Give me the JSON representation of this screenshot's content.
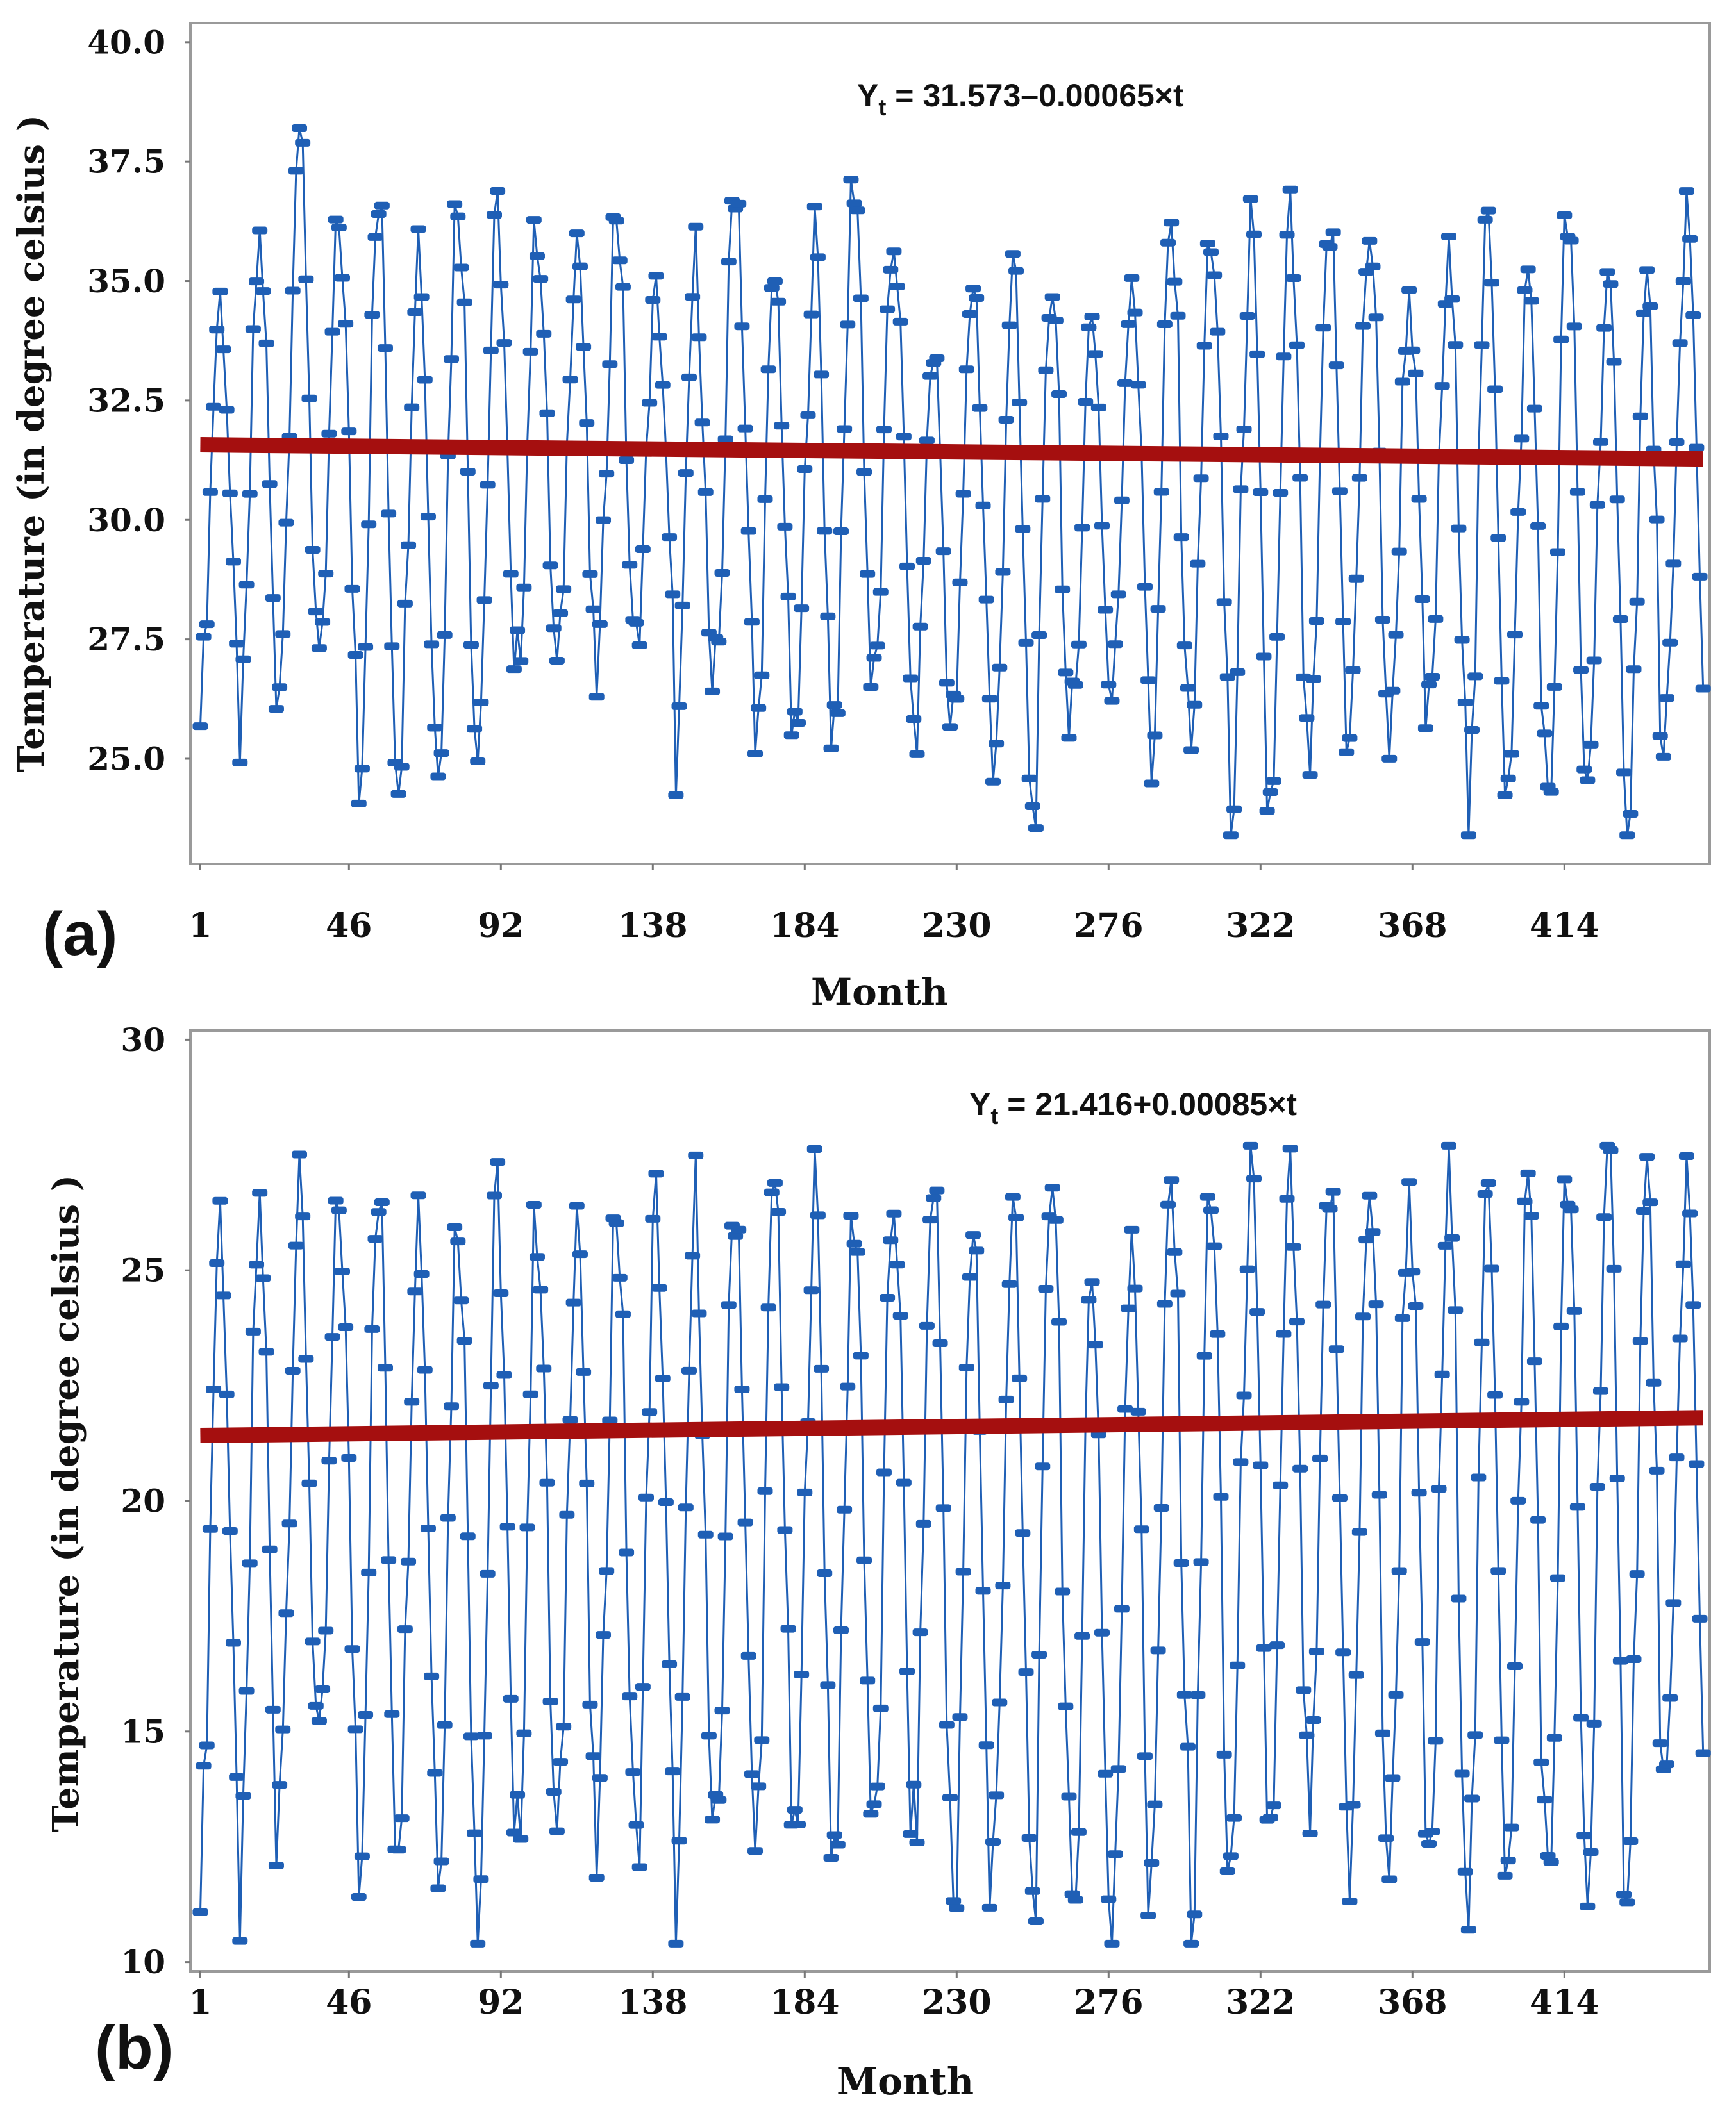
{
  "chart_data": [
    {
      "type": "line",
      "panel_label": "(a)",
      "equation": {
        "base": "Y",
        "sub": "t",
        "rest": " = 31.573–0.00065×t"
      },
      "xlabel": "Month",
      "ylabel": "Temperature (in degree celsius )",
      "xticks": [
        1,
        46,
        92,
        138,
        184,
        230,
        276,
        322,
        368,
        414
      ],
      "yticks": [
        25.0,
        27.5,
        30.0,
        32.5,
        35.0,
        37.5,
        40.0
      ],
      "ytick_labels": [
        "25.0",
        "27.5",
        "30.0",
        "32.5",
        "35.0",
        "37.5",
        "40.0"
      ],
      "xlim": [
        -2,
        458
      ],
      "ylim": [
        22.8,
        40.4
      ],
      "series": [
        {
          "name": "Temperature",
          "color": "#1f5fb5",
          "n": 456,
          "cycles": 38,
          "range": [
            23.4,
            38.2
          ],
          "peaks": [
            34.6,
            35.8,
            38.2,
            36.2,
            36.6,
            35.9,
            37.0,
            36.3,
            36.2,
            36.0,
            36.6,
            34.7,
            35.4,
            37.3,
            35.0,
            35.8,
            37.3,
            36.0,
            33.6,
            35.1,
            35.1,
            35.3,
            34.4,
            35.3,
            36.1,
            36.1,
            35.9,
            36.1,
            36.1,
            36.1,
            34.8,
            35.3,
            36.4,
            35.1,
            36.4,
            35.0,
            34.8,
            36.5
          ],
          "troughs": [
            26.4,
            25.5,
            27.2,
            26.5,
            24.8,
            24.9,
            25.3,
            25.7,
            27.0,
            26.7,
            26.7,
            27.5,
            25.0,
            26.7,
            25.1,
            25.1,
            26.0,
            26.5,
            25.1,
            25.8,
            24.2,
            23.7,
            26.0,
            26.3,
            25.0,
            25.8,
            23.4,
            24.1,
            25.0,
            25.9,
            25.2,
            25.9,
            24.1,
            24.3,
            23.6,
            24.8,
            23.6,
            25.8
          ]
        },
        {
          "name": "Linear trend",
          "color": "#a50f0f",
          "intercept": 31.573,
          "slope": -0.00065,
          "x_range": [
            1,
            456
          ]
        }
      ]
    },
    {
      "type": "line",
      "panel_label": "(b)",
      "equation": {
        "base": "Y",
        "sub": "t",
        "rest": " = 21.416+0.00085×t"
      },
      "xlabel": "Month",
      "ylabel": "Temperature (in degree celsius )",
      "xticks": [
        1,
        46,
        92,
        138,
        184,
        230,
        276,
        322,
        368,
        414
      ],
      "yticks": [
        10,
        15,
        20,
        25,
        30
      ],
      "ytick_labels": [
        "10",
        "15",
        "20",
        "25",
        "30"
      ],
      "xlim": [
        -2,
        458
      ],
      "ylim": [
        9.8,
        30.2
      ],
      "series": [
        {
          "name": "Temperature",
          "color": "#1f5fb5",
          "n": 456,
          "cycles": 38,
          "range": [
            10.4,
            27.7
          ],
          "peaks": [
            26.2,
            26.3,
            26.5,
            26.4,
            26.5,
            26.4,
            26.4,
            26.5,
            26.3,
            26.4,
            26.5,
            26.3,
            26.4,
            26.8,
            26.9,
            26.6,
            26.4,
            26.8,
            27.1,
            26.2,
            26.0,
            27.7,
            25.0,
            26.3,
            26.8,
            27.1,
            26.9,
            26.7,
            26.8,
            27.0,
            26.9,
            26.8,
            26.8,
            26.9,
            27.0,
            27.7,
            26.9,
            27.0
          ],
          "troughs": [
            12.3,
            11.3,
            14.6,
            14.2,
            12.3,
            13.2,
            12.4,
            11.1,
            12.6,
            12.3,
            12.4,
            12.3,
            11.0,
            12.5,
            12.4,
            12.1,
            12.6,
            12.5,
            12.6,
            10.4,
            12.2,
            11.1,
            10.4,
            10.4,
            12.8,
            10.5,
            12.5,
            12.9,
            13.2,
            12.0,
            12.1,
            11.5,
            11.7,
            11.8,
            11.3,
            11.6,
            12.3,
            13.7
          ]
        },
        {
          "name": "Linear trend",
          "color": "#a50f0f",
          "intercept": 21.416,
          "slope": 0.00085,
          "x_range": [
            1,
            456
          ]
        }
      ]
    }
  ]
}
